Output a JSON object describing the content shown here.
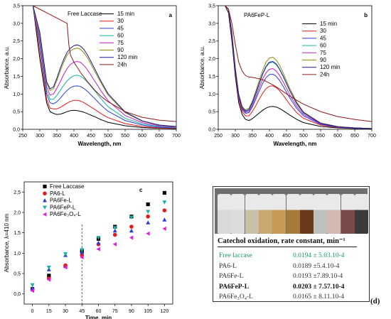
{
  "chart_data": [
    {
      "panel": "a",
      "type": "line",
      "title": "",
      "inset_label": "Free Laccase",
      "panel_letter": "a",
      "xlabel": "Wavelength, nm",
      "ylabel": "Absorbance, a.u.",
      "xlim": [
        250,
        700
      ],
      "ylim": [
        0,
        3.5
      ],
      "xticks": [
        "250",
        "300",
        "350",
        "400",
        "450",
        "500",
        "550",
        "600",
        "650",
        "700"
      ],
      "yticks": [
        "0,0",
        "0,5",
        "1,0",
        "1,5",
        "2,0",
        "2,5",
        "3,0",
        "3,5"
      ],
      "series": [
        {
          "name": "15 min",
          "color": "#000000",
          "x": [
            280,
            300,
            320,
            330,
            340,
            350,
            360,
            370,
            380,
            390,
            400,
            410,
            420,
            430,
            440,
            460,
            480,
            500,
            550,
            600,
            650,
            700
          ],
          "y": [
            3.5,
            2.0,
            0.75,
            0.5,
            0.45,
            0.42,
            0.43,
            0.46,
            0.5,
            0.53,
            0.54,
            0.53,
            0.51,
            0.48,
            0.44,
            0.36,
            0.27,
            0.2,
            0.1,
            0.05,
            0.03,
            0.02
          ]
        },
        {
          "name": "30",
          "color": "#e41a1c",
          "x": [
            280,
            300,
            320,
            330,
            340,
            350,
            360,
            370,
            380,
            390,
            400,
            410,
            420,
            430,
            440,
            460,
            480,
            500,
            550,
            600,
            650,
            700
          ],
          "y": [
            3.5,
            2.2,
            0.85,
            0.6,
            0.58,
            0.58,
            0.62,
            0.68,
            0.74,
            0.79,
            0.82,
            0.82,
            0.8,
            0.75,
            0.69,
            0.57,
            0.44,
            0.33,
            0.16,
            0.08,
            0.04,
            0.03
          ]
        },
        {
          "name": "45",
          "color": "#2b3fd6",
          "x": [
            280,
            300,
            320,
            330,
            340,
            350,
            360,
            370,
            380,
            390,
            400,
            410,
            420,
            430,
            440,
            460,
            480,
            500,
            550,
            600,
            650,
            700
          ],
          "y": [
            3.5,
            2.4,
            1.0,
            0.75,
            0.72,
            0.78,
            0.88,
            1.0,
            1.1,
            1.18,
            1.22,
            1.23,
            1.21,
            1.15,
            1.07,
            0.88,
            0.68,
            0.51,
            0.25,
            0.12,
            0.06,
            0.04
          ]
        },
        {
          "name": "60",
          "color": "#17b0a8",
          "x": [
            280,
            300,
            320,
            330,
            340,
            350,
            360,
            370,
            380,
            390,
            400,
            410,
            420,
            430,
            440,
            460,
            480,
            500,
            550,
            600,
            650,
            700
          ],
          "y": [
            3.5,
            2.5,
            1.1,
            0.85,
            0.85,
            0.96,
            1.1,
            1.25,
            1.37,
            1.46,
            1.52,
            1.53,
            1.5,
            1.43,
            1.33,
            1.1,
            0.86,
            0.64,
            0.31,
            0.15,
            0.08,
            0.05
          ]
        },
        {
          "name": "75",
          "color": "#c21ec4",
          "x": [
            280,
            300,
            320,
            330,
            340,
            350,
            360,
            370,
            380,
            390,
            400,
            410,
            420,
            430,
            440,
            460,
            480,
            500,
            550,
            600,
            650,
            700
          ],
          "y": [
            3.5,
            2.6,
            1.2,
            0.97,
            1.0,
            1.16,
            1.35,
            1.55,
            1.72,
            1.84,
            1.9,
            1.92,
            1.89,
            1.8,
            1.68,
            1.38,
            1.08,
            0.81,
            0.39,
            0.19,
            0.1,
            0.06
          ]
        },
        {
          "name": "90",
          "color": "#8d8d12",
          "x": [
            280,
            300,
            320,
            330,
            340,
            350,
            360,
            370,
            380,
            390,
            400,
            410,
            420,
            430,
            440,
            460,
            480,
            500,
            550,
            600,
            650,
            700
          ],
          "y": [
            3.5,
            2.7,
            1.3,
            1.1,
            1.15,
            1.38,
            1.65,
            1.9,
            2.1,
            2.22,
            2.28,
            2.3,
            2.26,
            2.16,
            2.02,
            1.66,
            1.3,
            0.97,
            0.47,
            0.23,
            0.12,
            0.07
          ]
        },
        {
          "name": "120 min",
          "color": "#1c1c8c",
          "x": [
            280,
            300,
            320,
            330,
            340,
            350,
            360,
            370,
            380,
            390,
            400,
            410,
            420,
            430,
            440,
            460,
            480,
            500,
            550,
            600,
            650,
            700
          ],
          "y": [
            3.5,
            2.75,
            1.35,
            1.15,
            1.2,
            1.45,
            1.73,
            1.98,
            2.18,
            2.3,
            2.37,
            2.39,
            2.35,
            2.25,
            2.1,
            1.73,
            1.35,
            1.01,
            0.49,
            0.24,
            0.12,
            0.08
          ]
        },
        {
          "name": "24h",
          "color": "#8b1a1a",
          "x": [
            280,
            300,
            320,
            340,
            360,
            380,
            385,
            390,
            400,
            420,
            440,
            460,
            480,
            500,
            550,
            600,
            650,
            700
          ],
          "y": [
            3.5,
            3.4,
            3.3,
            3.2,
            3.1,
            3.0,
            2.4,
            2.1,
            1.9,
            1.6,
            1.35,
            1.12,
            0.93,
            0.78,
            0.5,
            0.34,
            0.26,
            0.22
          ]
        }
      ]
    },
    {
      "panel": "b",
      "type": "line",
      "title": "",
      "inset_label": "PA6FeP-L",
      "panel_letter": "b",
      "xlabel": "Wavelength, nm",
      "ylabel": "Absorbance, a.u.",
      "xlim": [
        250,
        700
      ],
      "ylim": [
        0,
        3.5
      ],
      "xticks": [
        "250",
        "300",
        "350",
        "400",
        "450",
        "500",
        "550",
        "600",
        "650",
        "700"
      ],
      "yticks": [
        "0,0",
        "0,5",
        "1,0",
        "1,5",
        "2,0",
        "2,5",
        "3,0",
        "3,5"
      ],
      "series": [
        {
          "name": "15 min",
          "color": "#000000",
          "x": [
            270,
            280,
            290,
            300,
            310,
            320,
            330,
            340,
            350,
            360,
            370,
            380,
            390,
            400,
            410,
            420,
            430,
            440,
            460,
            480,
            500,
            550,
            600,
            650,
            700
          ],
          "y": [
            3.5,
            3.3,
            2.5,
            1.5,
            0.75,
            0.42,
            0.28,
            0.25,
            0.3,
            0.38,
            0.46,
            0.54,
            0.6,
            0.64,
            0.65,
            0.63,
            0.59,
            0.53,
            0.4,
            0.28,
            0.19,
            0.08,
            0.04,
            0.02,
            0.01
          ]
        },
        {
          "name": "30",
          "color": "#e41a1c",
          "x": [
            270,
            280,
            290,
            300,
            310,
            320,
            330,
            340,
            350,
            360,
            370,
            380,
            390,
            400,
            410,
            420,
            430,
            440,
            460,
            480,
            500,
            550,
            600,
            650,
            700
          ],
          "y": [
            3.5,
            3.4,
            2.6,
            1.6,
            0.85,
            0.5,
            0.38,
            0.38,
            0.5,
            0.67,
            0.85,
            1.02,
            1.15,
            1.22,
            1.23,
            1.18,
            1.09,
            0.97,
            0.7,
            0.47,
            0.31,
            0.12,
            0.05,
            0.03,
            0.02
          ]
        },
        {
          "name": "45",
          "color": "#2b3fd6",
          "x": [
            270,
            280,
            290,
            300,
            310,
            320,
            330,
            340,
            350,
            360,
            370,
            380,
            390,
            400,
            410,
            420,
            430,
            440,
            460,
            480,
            500,
            550,
            600,
            650,
            700
          ],
          "y": [
            3.5,
            3.4,
            2.65,
            1.65,
            0.9,
            0.56,
            0.45,
            0.47,
            0.63,
            0.85,
            1.08,
            1.3,
            1.46,
            1.55,
            1.56,
            1.5,
            1.38,
            1.22,
            0.88,
            0.59,
            0.38,
            0.14,
            0.06,
            0.03,
            0.02
          ]
        },
        {
          "name": "60",
          "color": "#17b0a8",
          "x": [
            270,
            280,
            290,
            300,
            310,
            320,
            330,
            340,
            350,
            360,
            370,
            380,
            390,
            400,
            410,
            420,
            430,
            440,
            460,
            480,
            500,
            550,
            600,
            650,
            700
          ],
          "y": [
            3.5,
            3.4,
            2.7,
            1.7,
            0.95,
            0.6,
            0.5,
            0.54,
            0.74,
            1.0,
            1.28,
            1.55,
            1.76,
            1.88,
            1.9,
            1.83,
            1.69,
            1.5,
            1.08,
            0.72,
            0.46,
            0.17,
            0.07,
            0.04,
            0.02
          ]
        },
        {
          "name": "75",
          "color": "#c21ec4",
          "x": [
            270,
            280,
            290,
            300,
            310,
            320,
            330,
            340,
            350,
            360,
            370,
            380,
            390,
            400,
            410,
            420,
            430,
            440,
            460,
            480,
            500,
            550,
            600,
            650,
            700
          ],
          "y": [
            3.5,
            3.4,
            2.68,
            1.68,
            0.93,
            0.58,
            0.48,
            0.5,
            0.68,
            0.92,
            1.18,
            1.42,
            1.6,
            1.7,
            1.72,
            1.65,
            1.52,
            1.35,
            0.97,
            0.65,
            0.42,
            0.16,
            0.07,
            0.04,
            0.02
          ]
        },
        {
          "name": "90",
          "color": "#8d8d12",
          "x": [
            270,
            280,
            290,
            300,
            310,
            320,
            330,
            340,
            350,
            360,
            370,
            380,
            390,
            400,
            410,
            420,
            430,
            440,
            460,
            480,
            500,
            550,
            600,
            650,
            700
          ],
          "y": [
            3.5,
            3.4,
            2.75,
            1.75,
            1.0,
            0.65,
            0.55,
            0.6,
            0.8,
            1.08,
            1.38,
            1.67,
            1.9,
            2.02,
            2.04,
            1.96,
            1.81,
            1.6,
            1.15,
            0.77,
            0.49,
            0.18,
            0.08,
            0.04,
            0.02
          ]
        },
        {
          "name": "120 min",
          "color": "#1c1c8c",
          "x": [
            270,
            280,
            290,
            300,
            310,
            320,
            330,
            340,
            350,
            360,
            370,
            380,
            390,
            400,
            410,
            420,
            430,
            440,
            460,
            480,
            500,
            550,
            600,
            650,
            700
          ],
          "y": [
            3.5,
            3.4,
            2.7,
            1.7,
            0.97,
            0.62,
            0.52,
            0.56,
            0.76,
            1.02,
            1.3,
            1.57,
            1.78,
            1.9,
            1.92,
            1.85,
            1.7,
            1.51,
            1.09,
            0.73,
            0.47,
            0.17,
            0.07,
            0.04,
            0.02
          ]
        },
        {
          "name": "24h",
          "color": "#8b1a1a",
          "x": [
            270,
            280,
            290,
            300,
            310,
            320,
            330,
            340,
            350,
            360,
            370,
            380,
            390,
            400,
            410,
            420,
            440,
            460,
            480,
            500,
            550,
            600,
            650,
            700
          ],
          "y": [
            3.5,
            3.4,
            3.0,
            2.4,
            1.9,
            1.65,
            1.52,
            1.48,
            1.47,
            1.45,
            1.43,
            1.4,
            1.36,
            1.31,
            1.26,
            1.2,
            1.07,
            0.94,
            0.82,
            0.71,
            0.5,
            0.36,
            0.28,
            0.22
          ]
        }
      ]
    },
    {
      "panel": "c",
      "type": "scatter",
      "title": "",
      "panel_letter": "c",
      "xlabel": "Time, min",
      "ylabel": "Absorbance, λ=410 nm",
      "xlim": [
        -7.5,
        127.5
      ],
      "ylim": [
        -0.25,
        2.75
      ],
      "xticks": [
        "0",
        "15",
        "30",
        "45",
        "60",
        "75",
        "90",
        "105",
        "120"
      ],
      "yticks": [
        "0,0",
        "0,5",
        "1,0",
        "1,5",
        "2,0",
        "2,5"
      ],
      "dashed_line_x": 45,
      "x": [
        0,
        15,
        30,
        45,
        60,
        75,
        90,
        105,
        120
      ],
      "series": [
        {
          "name": "Free Laccase",
          "marker": "square",
          "color": "#000000",
          "values": [
            0.12,
            0.45,
            0.68,
            1.05,
            1.35,
            1.65,
            1.9,
            2.2,
            2.48
          ]
        },
        {
          "name": "PA6-L",
          "marker": "circle",
          "color": "#e41a1c",
          "values": [
            0.1,
            0.38,
            0.7,
            0.95,
            1.22,
            1.45,
            1.65,
            1.9,
            2.05
          ]
        },
        {
          "name": "PA6Fe-L",
          "marker": "triangle-up",
          "color": "#2b3fd6",
          "values": [
            0.14,
            0.6,
            0.95,
            1.02,
            1.25,
            1.55,
            1.55,
            1.75,
            1.82
          ]
        },
        {
          "name": "PA6FeP-L",
          "marker": "triangle-down",
          "color": "#17b0a8",
          "values": [
            0.22,
            0.65,
            0.98,
            1.08,
            1.38,
            1.62,
            1.88,
            2.02,
            2.25
          ]
        },
        {
          "name": "PA6Fe₃O₄-L",
          "marker": "triangle-left",
          "color": "#e01ee0",
          "values": [
            0.08,
            0.35,
            0.65,
            0.9,
            1.1,
            1.22,
            1.38,
            1.48,
            1.6
          ]
        }
      ]
    },
    {
      "panel": "d",
      "type": "table",
      "title": "Catechol oxidation, rate constant, min⁻¹",
      "panel_letter": "(d)",
      "vial_colors": [
        "#d9d9d9",
        "#dcdcdc",
        "#c9bfa6",
        "#c8a870",
        "#c49a55",
        "#a87a3a",
        "#6a3a1a",
        "#bfbfbf",
        "#d2b8b0",
        "#7a4a48",
        "#3a3a3a"
      ],
      "rows": [
        {
          "name": "Free laccase",
          "value": "0.0194 ± 5.03.10-4",
          "color": "#1a9a5a",
          "bold": false
        },
        {
          "name": "PA6-L",
          "value": "0.0189 ±5.4.10-4",
          "color": "#333333",
          "bold": false
        },
        {
          "name": "PA6Fe-L",
          "value": "0.0193 ±7.89.10-4",
          "color": "#333333",
          "bold": false
        },
        {
          "name": "PA6FeP-L",
          "value": "0.0203 ± 7.57.10-4",
          "color": "#111111",
          "bold": true
        },
        {
          "name": "PA6Fe₃O₄-L",
          "value": "0.0165 ± 8.11.10-4",
          "color": "#333333",
          "bold": false
        }
      ]
    }
  ]
}
